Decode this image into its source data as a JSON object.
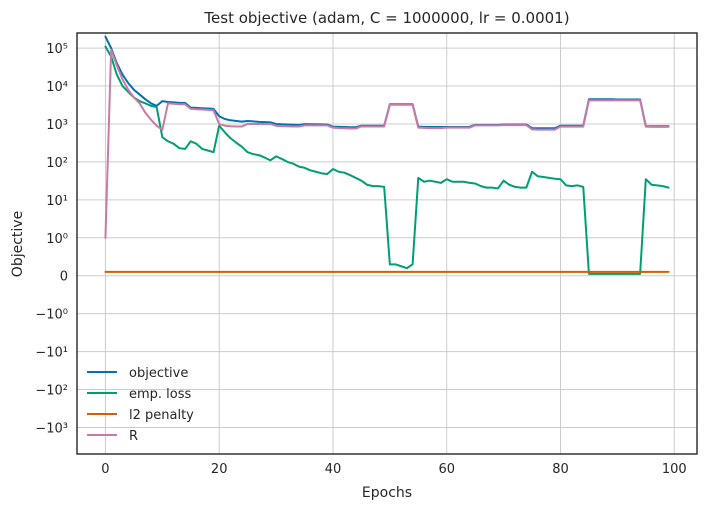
{
  "chart_data": {
    "type": "line",
    "title": "Test objective (adam, C = 1000000, lr = 0.0001)",
    "xlabel": "Epochs",
    "ylabel": "Objective",
    "yscale": "symlog",
    "xlim": [
      -5,
      104
    ],
    "ylim": [
      -5000,
      250000
    ],
    "grid": true,
    "legend_position": "lower-left",
    "x_ticks": [
      0,
      20,
      40,
      60,
      80,
      100
    ],
    "x_tick_labels": [
      "0",
      "20",
      "40",
      "60",
      "80",
      "100"
    ],
    "y_ticks": [
      100000,
      10000,
      1000,
      100,
      10,
      1,
      0,
      -1,
      -10,
      -100,
      -1000
    ],
    "y_tick_labels": [
      "10⁵",
      "10⁴",
      "10³",
      "10²",
      "10¹",
      "10⁰",
      "0",
      "−10⁰",
      "−10¹",
      "−10²",
      "−10³"
    ],
    "series": [
      {
        "name": "objective",
        "color": "#0072b2",
        "values": [
          200000,
          100000,
          40000,
          20000,
          12000,
          8000,
          6000,
          4500,
          3500,
          3000,
          4000,
          3800,
          3700,
          3600,
          3600,
          2700,
          2650,
          2600,
          2550,
          2500,
          1600,
          1350,
          1250,
          1200,
          1150,
          1200,
          1170,
          1140,
          1120,
          1100,
          1000,
          980,
          970,
          960,
          950,
          990,
          985,
          980,
          975,
          970,
          850,
          840,
          830,
          820,
          820,
          900,
          900,
          900,
          900,
          900,
          3300,
          3300,
          3300,
          3300,
          3300,
          850,
          840,
          830,
          830,
          830,
          830,
          830,
          830,
          830,
          840,
          950,
          950,
          950,
          950,
          950,
          970,
          970,
          970,
          970,
          970,
          780,
          770,
          770,
          770,
          770,
          900,
          900,
          900,
          900,
          900,
          4500,
          4500,
          4500,
          4500,
          4500,
          4400,
          4400,
          4400,
          4400,
          4400,
          880,
          870,
          870,
          870,
          870
        ]
      },
      {
        "name": "emp. loss",
        "color": "#009e73",
        "values": [
          110000,
          60000,
          20000,
          10000,
          7000,
          5000,
          4000,
          3500,
          3000,
          2800,
          450,
          350,
          300,
          230,
          220,
          350,
          300,
          220,
          200,
          180,
          900,
          600,
          420,
          320,
          250,
          180,
          160,
          150,
          130,
          110,
          140,
          120,
          100,
          90,
          75,
          70,
          60,
          55,
          50,
          48,
          65,
          55,
          52,
          45,
          38,
          32,
          25,
          23,
          23,
          22,
          0.3,
          0.3,
          0.25,
          0.2,
          0.3,
          38,
          30,
          32,
          30,
          28,
          35,
          30,
          30,
          30,
          28,
          27,
          23,
          21,
          21,
          20,
          32,
          25,
          22,
          21,
          21,
          55,
          42,
          40,
          38,
          36,
          35,
          24,
          23,
          24,
          22,
          0.05,
          0.05,
          0.05,
          0.05,
          0.05,
          0.05,
          0.05,
          0.05,
          0.05,
          0.05,
          35,
          25,
          24,
          23,
          21
        ]
      },
      {
        "name": "l2 penalty",
        "color": "#d55e00",
        "values": [
          0.1,
          0.1,
          0.1,
          0.1,
          0.1,
          0.1,
          0.1,
          0.1,
          0.1,
          0.1,
          0.1,
          0.1,
          0.1,
          0.1,
          0.1,
          0.1,
          0.1,
          0.1,
          0.1,
          0.1,
          0.1,
          0.1,
          0.1,
          0.1,
          0.1,
          0.1,
          0.1,
          0.1,
          0.1,
          0.1,
          0.1,
          0.1,
          0.1,
          0.1,
          0.1,
          0.1,
          0.1,
          0.1,
          0.1,
          0.1,
          0.1,
          0.1,
          0.1,
          0.1,
          0.1,
          0.1,
          0.1,
          0.1,
          0.1,
          0.1,
          0.1,
          0.1,
          0.1,
          0.1,
          0.1,
          0.1,
          0.1,
          0.1,
          0.1,
          0.1,
          0.1,
          0.1,
          0.1,
          0.1,
          0.1,
          0.1,
          0.1,
          0.1,
          0.1,
          0.1,
          0.1,
          0.1,
          0.1,
          0.1,
          0.1,
          0.1,
          0.1,
          0.1,
          0.1,
          0.1,
          0.1,
          0.1,
          0.1,
          0.1,
          0.1,
          0.1,
          0.1,
          0.1,
          0.1,
          0.1,
          0.1,
          0.1,
          0.1,
          0.1,
          0.1,
          0.1,
          0.1,
          0.1,
          0.1,
          0.1
        ]
      },
      {
        "name": "R",
        "color": "#cc79a7",
        "values": [
          1,
          90000,
          35000,
          15000,
          8000,
          5000,
          3500,
          2000,
          1300,
          900,
          700,
          3500,
          3400,
          3300,
          3300,
          2500,
          2450,
          2400,
          2350,
          2300,
          1000,
          900,
          870,
          860,
          860,
          1000,
          1000,
          1000,
          1000,
          1000,
          900,
          880,
          870,
          860,
          860,
          920,
          920,
          920,
          920,
          920,
          800,
          780,
          770,
          760,
          760,
          860,
          860,
          860,
          860,
          860,
          3200,
          3200,
          3200,
          3200,
          3200,
          800,
          790,
          780,
          780,
          780,
          800,
          800,
          800,
          800,
          800,
          920,
          920,
          920,
          920,
          920,
          930,
          930,
          930,
          930,
          930,
          720,
          710,
          710,
          710,
          710,
          850,
          850,
          850,
          850,
          850,
          4200,
          4200,
          4200,
          4200,
          4200,
          4200,
          4200,
          4200,
          4200,
          4200,
          850,
          840,
          840,
          840,
          840
        ]
      }
    ]
  }
}
